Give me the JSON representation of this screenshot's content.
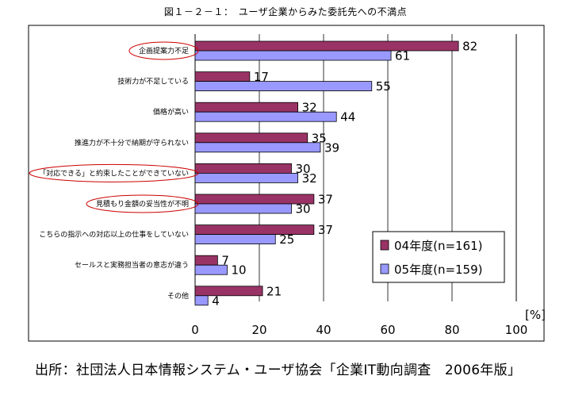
{
  "title": "図１－２－１：　ユーザ企業からみた委託先への不満点",
  "source": "出所：社団法人日本情報システム・ユーザ協会「企業IT動向調査　2006年版」",
  "colors": {
    "series1": "#993366",
    "series2": "#9999ff",
    "grid": "#000000",
    "highlight": "#cc0000"
  },
  "chart_data": {
    "type": "bar",
    "orientation": "horizontal",
    "categories": [
      "企画提案力不足",
      "技術力が不足している",
      "価格が高い",
      "推進力が不十分で納期が守られない",
      "「対応できる」と約束したことができていない",
      "見積もり金額の妥当性が不明",
      "こちらの指示への対応以上の仕事をしていない",
      "セールスと実務担当者の意志が違う",
      "その他"
    ],
    "series": [
      {
        "name": "04年度(n=161)",
        "values": [
          82,
          17,
          32,
          35,
          30,
          37,
          37,
          7,
          21
        ]
      },
      {
        "name": "05年度(n=159)",
        "values": [
          61,
          55,
          44,
          39,
          32,
          30,
          25,
          10,
          4
        ]
      }
    ],
    "xlim": [
      0,
      100
    ],
    "xticks": [
      "0",
      "20",
      "40",
      "60",
      "80",
      "100"
    ],
    "unit_label": "[%]",
    "highlighted_categories": [
      0,
      4,
      5
    ],
    "legend": "bottom-right",
    "grid": true
  }
}
